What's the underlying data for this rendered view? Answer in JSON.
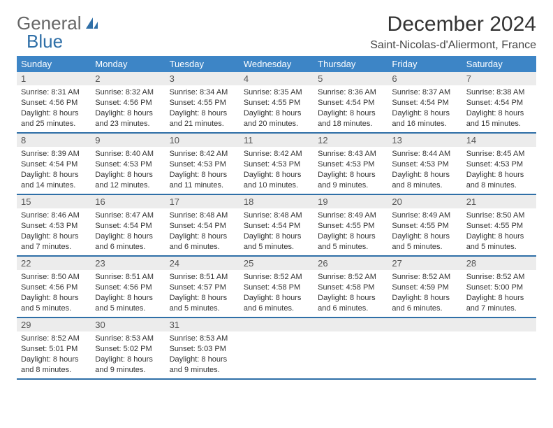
{
  "brand": {
    "word1": "General",
    "word2": "Blue"
  },
  "title": "December 2024",
  "location": "Saint-Nicolas-d'Aliermont, France",
  "colors": {
    "header_bar": "#3d85c6",
    "week_divider": "#2f6fa7",
    "daynum_bg": "#ececec",
    "text": "#333333",
    "brand_gray": "#666666",
    "brand_blue": "#2f6fa7",
    "background": "#ffffff"
  },
  "typography": {
    "title_fontsize": 30,
    "location_fontsize": 16,
    "dow_fontsize": 13,
    "daynum_fontsize": 13,
    "body_fontsize": 11
  },
  "dow": [
    "Sunday",
    "Monday",
    "Tuesday",
    "Wednesday",
    "Thursday",
    "Friday",
    "Saturday"
  ],
  "weeks": [
    [
      {
        "n": "1",
        "sr": "Sunrise: 8:31 AM",
        "ss": "Sunset: 4:56 PM",
        "d1": "Daylight: 8 hours",
        "d2": "and 25 minutes."
      },
      {
        "n": "2",
        "sr": "Sunrise: 8:32 AM",
        "ss": "Sunset: 4:56 PM",
        "d1": "Daylight: 8 hours",
        "d2": "and 23 minutes."
      },
      {
        "n": "3",
        "sr": "Sunrise: 8:34 AM",
        "ss": "Sunset: 4:55 PM",
        "d1": "Daylight: 8 hours",
        "d2": "and 21 minutes."
      },
      {
        "n": "4",
        "sr": "Sunrise: 8:35 AM",
        "ss": "Sunset: 4:55 PM",
        "d1": "Daylight: 8 hours",
        "d2": "and 20 minutes."
      },
      {
        "n": "5",
        "sr": "Sunrise: 8:36 AM",
        "ss": "Sunset: 4:54 PM",
        "d1": "Daylight: 8 hours",
        "d2": "and 18 minutes."
      },
      {
        "n": "6",
        "sr": "Sunrise: 8:37 AM",
        "ss": "Sunset: 4:54 PM",
        "d1": "Daylight: 8 hours",
        "d2": "and 16 minutes."
      },
      {
        "n": "7",
        "sr": "Sunrise: 8:38 AM",
        "ss": "Sunset: 4:54 PM",
        "d1": "Daylight: 8 hours",
        "d2": "and 15 minutes."
      }
    ],
    [
      {
        "n": "8",
        "sr": "Sunrise: 8:39 AM",
        "ss": "Sunset: 4:54 PM",
        "d1": "Daylight: 8 hours",
        "d2": "and 14 minutes."
      },
      {
        "n": "9",
        "sr": "Sunrise: 8:40 AM",
        "ss": "Sunset: 4:53 PM",
        "d1": "Daylight: 8 hours",
        "d2": "and 12 minutes."
      },
      {
        "n": "10",
        "sr": "Sunrise: 8:42 AM",
        "ss": "Sunset: 4:53 PM",
        "d1": "Daylight: 8 hours",
        "d2": "and 11 minutes."
      },
      {
        "n": "11",
        "sr": "Sunrise: 8:42 AM",
        "ss": "Sunset: 4:53 PM",
        "d1": "Daylight: 8 hours",
        "d2": "and 10 minutes."
      },
      {
        "n": "12",
        "sr": "Sunrise: 8:43 AM",
        "ss": "Sunset: 4:53 PM",
        "d1": "Daylight: 8 hours",
        "d2": "and 9 minutes."
      },
      {
        "n": "13",
        "sr": "Sunrise: 8:44 AM",
        "ss": "Sunset: 4:53 PM",
        "d1": "Daylight: 8 hours",
        "d2": "and 8 minutes."
      },
      {
        "n": "14",
        "sr": "Sunrise: 8:45 AM",
        "ss": "Sunset: 4:53 PM",
        "d1": "Daylight: 8 hours",
        "d2": "and 8 minutes."
      }
    ],
    [
      {
        "n": "15",
        "sr": "Sunrise: 8:46 AM",
        "ss": "Sunset: 4:53 PM",
        "d1": "Daylight: 8 hours",
        "d2": "and 7 minutes."
      },
      {
        "n": "16",
        "sr": "Sunrise: 8:47 AM",
        "ss": "Sunset: 4:54 PM",
        "d1": "Daylight: 8 hours",
        "d2": "and 6 minutes."
      },
      {
        "n": "17",
        "sr": "Sunrise: 8:48 AM",
        "ss": "Sunset: 4:54 PM",
        "d1": "Daylight: 8 hours",
        "d2": "and 6 minutes."
      },
      {
        "n": "18",
        "sr": "Sunrise: 8:48 AM",
        "ss": "Sunset: 4:54 PM",
        "d1": "Daylight: 8 hours",
        "d2": "and 5 minutes."
      },
      {
        "n": "19",
        "sr": "Sunrise: 8:49 AM",
        "ss": "Sunset: 4:55 PM",
        "d1": "Daylight: 8 hours",
        "d2": "and 5 minutes."
      },
      {
        "n": "20",
        "sr": "Sunrise: 8:49 AM",
        "ss": "Sunset: 4:55 PM",
        "d1": "Daylight: 8 hours",
        "d2": "and 5 minutes."
      },
      {
        "n": "21",
        "sr": "Sunrise: 8:50 AM",
        "ss": "Sunset: 4:55 PM",
        "d1": "Daylight: 8 hours",
        "d2": "and 5 minutes."
      }
    ],
    [
      {
        "n": "22",
        "sr": "Sunrise: 8:50 AM",
        "ss": "Sunset: 4:56 PM",
        "d1": "Daylight: 8 hours",
        "d2": "and 5 minutes."
      },
      {
        "n": "23",
        "sr": "Sunrise: 8:51 AM",
        "ss": "Sunset: 4:56 PM",
        "d1": "Daylight: 8 hours",
        "d2": "and 5 minutes."
      },
      {
        "n": "24",
        "sr": "Sunrise: 8:51 AM",
        "ss": "Sunset: 4:57 PM",
        "d1": "Daylight: 8 hours",
        "d2": "and 5 minutes."
      },
      {
        "n": "25",
        "sr": "Sunrise: 8:52 AM",
        "ss": "Sunset: 4:58 PM",
        "d1": "Daylight: 8 hours",
        "d2": "and 6 minutes."
      },
      {
        "n": "26",
        "sr": "Sunrise: 8:52 AM",
        "ss": "Sunset: 4:58 PM",
        "d1": "Daylight: 8 hours",
        "d2": "and 6 minutes."
      },
      {
        "n": "27",
        "sr": "Sunrise: 8:52 AM",
        "ss": "Sunset: 4:59 PM",
        "d1": "Daylight: 8 hours",
        "d2": "and 6 minutes."
      },
      {
        "n": "28",
        "sr": "Sunrise: 8:52 AM",
        "ss": "Sunset: 5:00 PM",
        "d1": "Daylight: 8 hours",
        "d2": "and 7 minutes."
      }
    ],
    [
      {
        "n": "29",
        "sr": "Sunrise: 8:52 AM",
        "ss": "Sunset: 5:01 PM",
        "d1": "Daylight: 8 hours",
        "d2": "and 8 minutes."
      },
      {
        "n": "30",
        "sr": "Sunrise: 8:53 AM",
        "ss": "Sunset: 5:02 PM",
        "d1": "Daylight: 8 hours",
        "d2": "and 9 minutes."
      },
      {
        "n": "31",
        "sr": "Sunrise: 8:53 AM",
        "ss": "Sunset: 5:03 PM",
        "d1": "Daylight: 8 hours",
        "d2": "and 9 minutes."
      },
      {
        "empty": true
      },
      {
        "empty": true
      },
      {
        "empty": true
      },
      {
        "empty": true
      }
    ]
  ]
}
